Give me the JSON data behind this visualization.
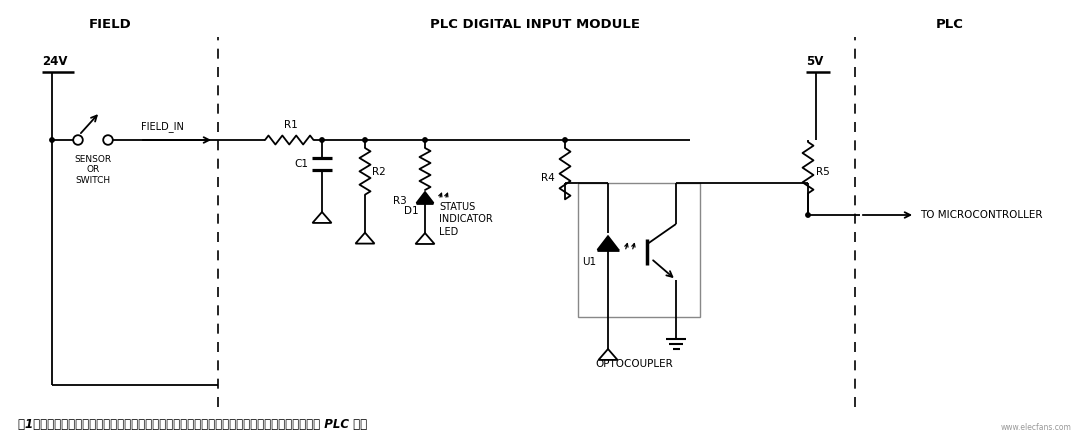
{
  "bg_color": "#ffffff",
  "line_color": "#000000",
  "text_color": "#000000",
  "section_labels": {
    "field": "FIELD",
    "plc_module": "PLC DIGITAL INPUT MODULE",
    "plc": "PLC"
  },
  "voltage_labels": {
    "v24": "24V",
    "v5": "5V"
  },
  "component_labels": {
    "R1": "R1",
    "R2": "R2",
    "R3": "R3",
    "R4": "R4",
    "R5": "R5",
    "C1": "C1",
    "D1": "D1",
    "U1": "U1"
  },
  "node_labels": {
    "sensor": "SENSOR\nOR\nSWITCH",
    "field_in": "FIELD_IN",
    "status_indicator": "STATUS\nINDICATOR\nLED",
    "optocoupler": "OPTOCOUPLER",
    "to_micro": "TO MICROCONTROLLER"
  },
  "caption": "图1：传统工业传感器监测系统原理图，其中电阻分压器和光耦用于监测和检测传感器输出至系统 PLC 的信",
  "watermark": "www.elecfans.com"
}
